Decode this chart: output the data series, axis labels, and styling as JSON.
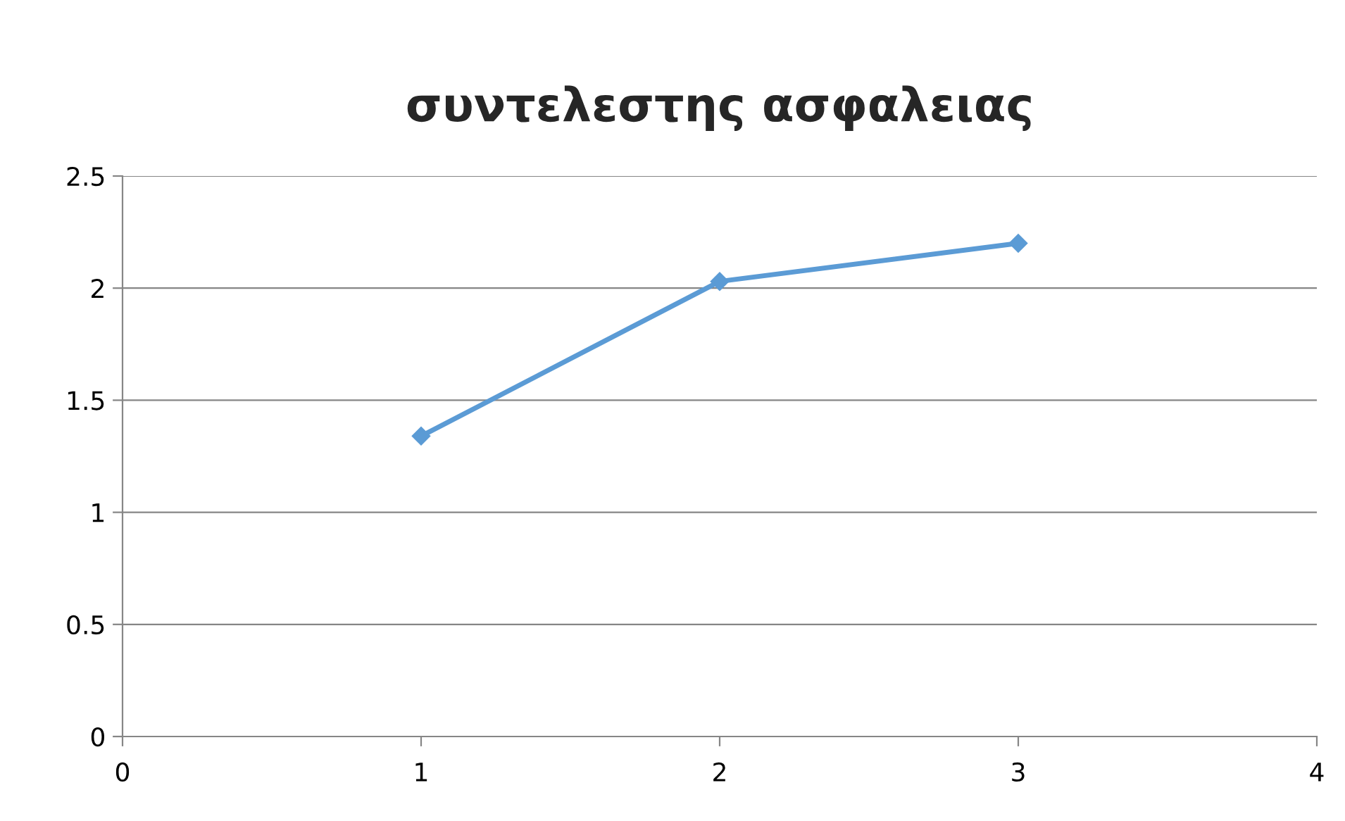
{
  "chart_data": {
    "type": "line",
    "title": "συντελεστης ασφαλειας",
    "x": [
      1,
      2,
      3
    ],
    "series": [
      {
        "color": "#5b9bd5",
        "values": [
          1.34,
          2.03,
          2.2
        ]
      }
    ],
    "xlim": [
      0,
      4
    ],
    "xticks": [
      0,
      1,
      2,
      3,
      4
    ],
    "ylim": [
      0,
      2.5
    ],
    "yticks": [
      0,
      0.5,
      1,
      1.5,
      2,
      2.5
    ],
    "grid": "y",
    "marker": "diamond",
    "line_style": "solid",
    "legend": false
  }
}
